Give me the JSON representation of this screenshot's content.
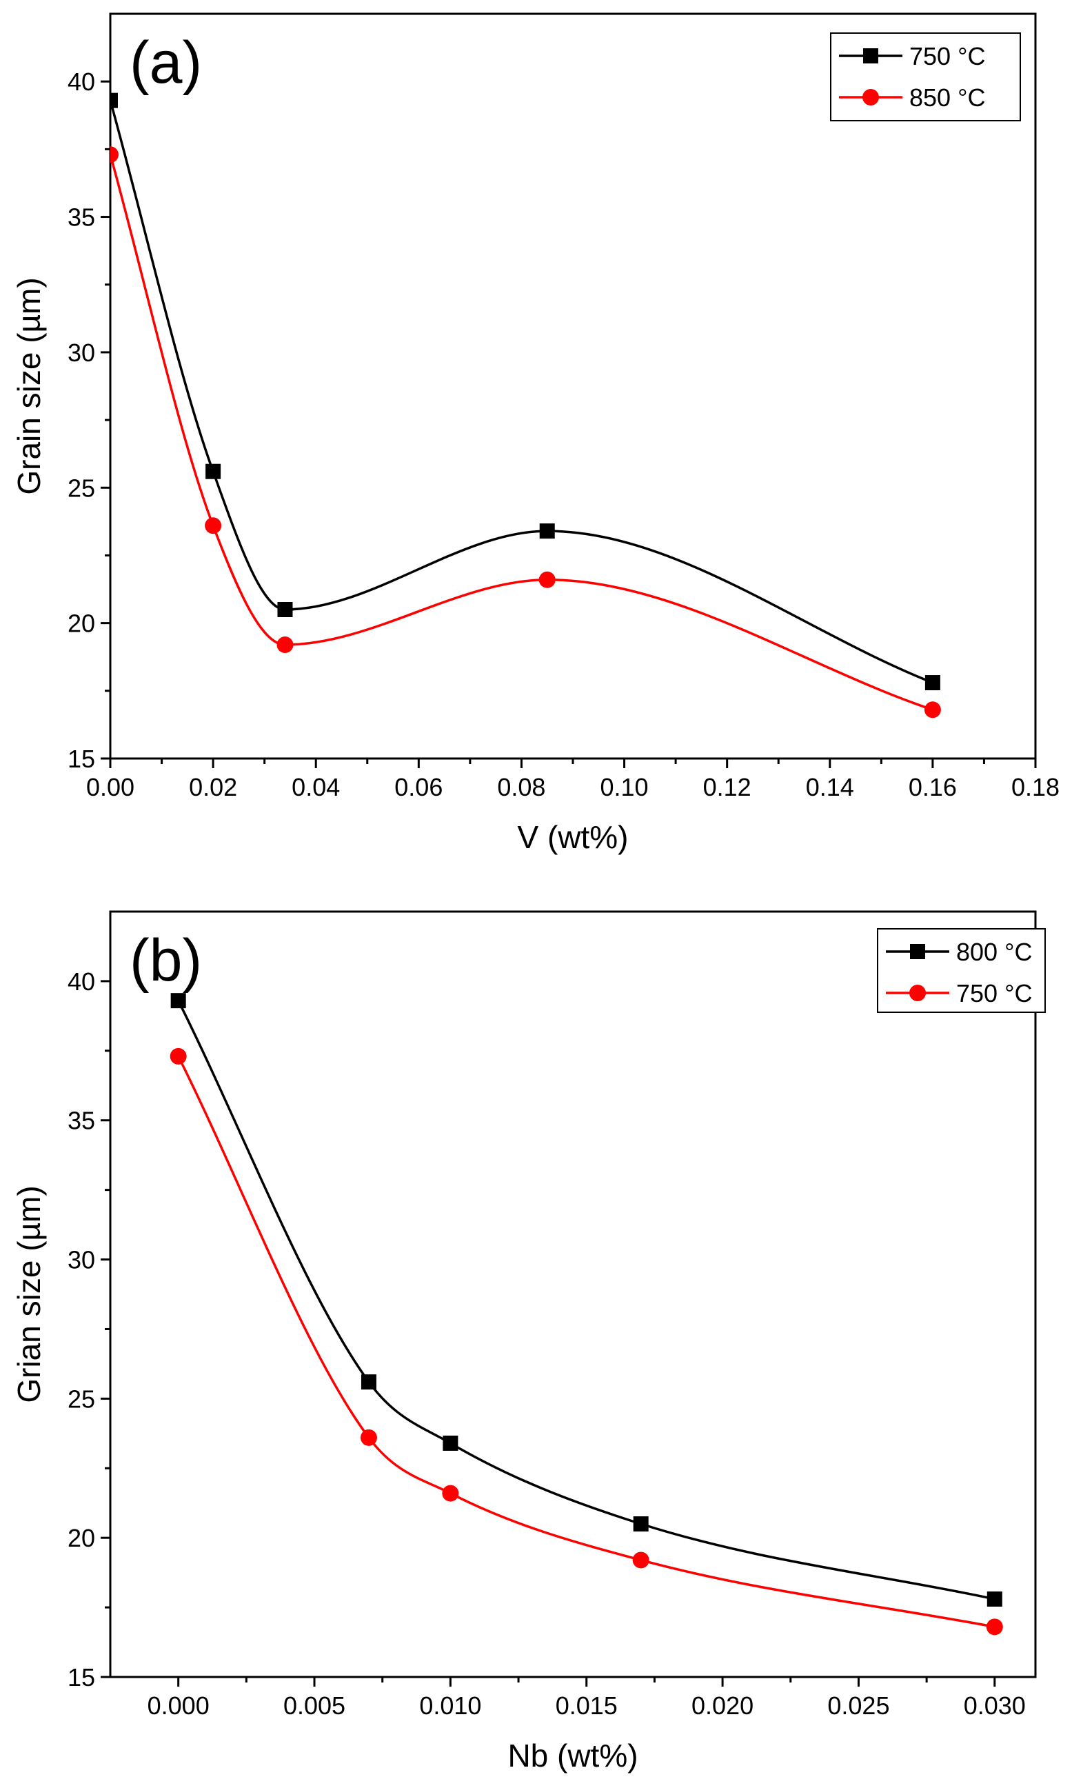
{
  "chart_data": [
    {
      "type": "line",
      "panel_label": "(a)",
      "xlabel": "V (wt%)",
      "ylabel": "Grain size (µm)",
      "xlim": [
        0,
        0.18
      ],
      "ylim": [
        15,
        42.5
      ],
      "xticks": [
        0,
        0.02,
        0.04,
        0.06,
        0.08,
        0.1,
        0.12,
        0.14,
        0.16,
        0.18
      ],
      "xtick_labels": [
        "0.00",
        "0.02",
        "0.04",
        "0.06",
        "0.08",
        "0.10",
        "0.12",
        "0.14",
        "0.16",
        "0.18"
      ],
      "yticks": [
        15,
        20,
        25,
        30,
        35,
        40
      ],
      "ytick_labels": [
        "15",
        "20",
        "25",
        "30",
        "35",
        "40"
      ],
      "legend_position": "top-right",
      "series": [
        {
          "name": "750 °C",
          "color": "#000000",
          "marker": "square",
          "x": [
            0,
            0.02,
            0.034,
            0.085,
            0.16
          ],
          "y": [
            39.3,
            25.6,
            20.5,
            23.4,
            17.8
          ]
        },
        {
          "name": "850 °C",
          "color": "#ff0000",
          "marker": "circle",
          "x": [
            0,
            0.02,
            0.034,
            0.085,
            0.16
          ],
          "y": [
            37.3,
            23.6,
            19.2,
            21.6,
            16.8
          ]
        }
      ]
    },
    {
      "type": "line",
      "panel_label": "(b)",
      "xlabel": "Nb (wt%)",
      "ylabel": "Grian size (µm)",
      "xlim": [
        -0.0025,
        0.0315
      ],
      "ylim": [
        15,
        42.5
      ],
      "xticks": [
        0,
        0.005,
        0.01,
        0.015,
        0.02,
        0.025,
        0.03
      ],
      "xtick_labels": [
        "0.000",
        "0.005",
        "0.010",
        "0.015",
        "0.020",
        "0.025",
        "0.030"
      ],
      "yticks": [
        15,
        20,
        25,
        30,
        35,
        40
      ],
      "ytick_labels": [
        "15",
        "20",
        "25",
        "30",
        "35",
        "40"
      ],
      "legend_position": "top-right",
      "series": [
        {
          "name": "800 °C",
          "color": "#000000",
          "marker": "square",
          "x": [
            0,
            0.007,
            0.01,
            0.017,
            0.03
          ],
          "y": [
            39.3,
            25.6,
            23.4,
            20.5,
            17.8
          ]
        },
        {
          "name": "750 °C",
          "color": "#ff0000",
          "marker": "circle",
          "x": [
            0,
            0.007,
            0.01,
            0.017,
            0.03
          ],
          "y": [
            37.3,
            23.6,
            21.6,
            19.2,
            16.8
          ]
        }
      ]
    }
  ]
}
